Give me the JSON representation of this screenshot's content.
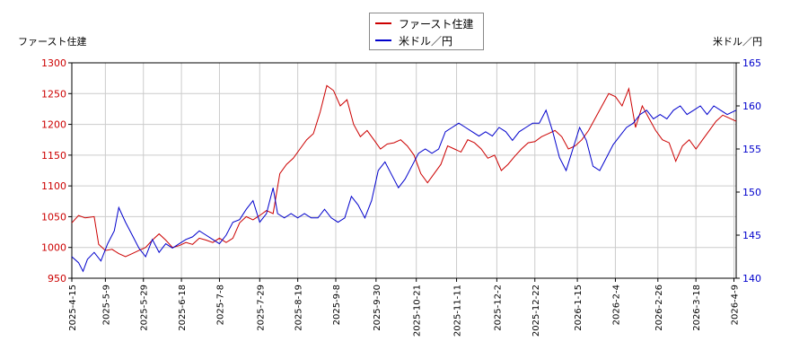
{
  "chart_data": {
    "type": "line",
    "title": "",
    "left_axis_label": "ファースト住建",
    "right_axis_label": "米ドル／円",
    "left_ylim": [
      950,
      1300
    ],
    "left_yticks": [
      "950",
      "1000",
      "1050",
      "1100",
      "1150",
      "1200",
      "1250",
      "1300"
    ],
    "right_ylim": [
      140,
      165
    ],
    "right_yticks": [
      "140",
      "145",
      "150",
      "155",
      "160",
      "165"
    ],
    "x_tick_labels": [
      "2025-4-15",
      "2025-5-9",
      "2025-5-29",
      "2025-6-18",
      "2025-7-8",
      "2025-7-29",
      "2025-8-19",
      "2025-9-8",
      "2025-9-30",
      "2025-10-21",
      "2025-11-11",
      "2025-12-2",
      "2025-12-22",
      "2026-1-15",
      "2026-2-4",
      "2026-2-26",
      "2026-3-18",
      "2026-4-9"
    ],
    "grid": true,
    "legend_position": "top-center",
    "series": [
      {
        "name": "ファースト住建",
        "axis": "left",
        "color": "#cc0000",
        "points": [
          [
            0,
            1040
          ],
          [
            0.3,
            1052
          ],
          [
            0.6,
            1048
          ],
          [
            1,
            1050
          ],
          [
            1.2,
            1005
          ],
          [
            1.5,
            995
          ],
          [
            1.8,
            997
          ],
          [
            2.1,
            990
          ],
          [
            2.4,
            985
          ],
          [
            2.7,
            990
          ],
          [
            3.0,
            995
          ],
          [
            3.3,
            1000
          ],
          [
            3.6,
            1012
          ],
          [
            3.9,
            1022
          ],
          [
            4.2,
            1012
          ],
          [
            4.5,
            1000
          ],
          [
            4.8,
            1003
          ],
          [
            5.1,
            1008
          ],
          [
            5.4,
            1005
          ],
          [
            5.7,
            1015
          ],
          [
            6.0,
            1012
          ],
          [
            6.3,
            1008
          ],
          [
            6.6,
            1015
          ],
          [
            6.9,
            1008
          ],
          [
            7.2,
            1015
          ],
          [
            7.5,
            1040
          ],
          [
            7.8,
            1050
          ],
          [
            8.1,
            1045
          ],
          [
            8.4,
            1052
          ],
          [
            8.7,
            1060
          ],
          [
            9.0,
            1055
          ],
          [
            9.3,
            1120
          ],
          [
            9.6,
            1135
          ],
          [
            9.9,
            1145
          ],
          [
            10.2,
            1160
          ],
          [
            10.5,
            1175
          ],
          [
            10.8,
            1185
          ],
          [
            11.1,
            1220
          ],
          [
            11.4,
            1263
          ],
          [
            11.7,
            1255
          ],
          [
            12.0,
            1230
          ],
          [
            12.3,
            1240
          ],
          [
            12.6,
            1200
          ],
          [
            12.9,
            1180
          ],
          [
            13.2,
            1190
          ],
          [
            13.5,
            1175
          ],
          [
            13.8,
            1160
          ],
          [
            14.1,
            1168
          ],
          [
            14.4,
            1170
          ],
          [
            14.7,
            1175
          ],
          [
            15.0,
            1165
          ],
          [
            15.3,
            1150
          ],
          [
            15.6,
            1120
          ],
          [
            15.9,
            1105
          ],
          [
            16.2,
            1120
          ],
          [
            16.5,
            1135
          ],
          [
            16.8,
            1165
          ],
          [
            17.1,
            1160
          ],
          [
            17.4,
            1155
          ],
          [
            17.7,
            1175
          ],
          [
            18.0,
            1170
          ],
          [
            18.3,
            1160
          ],
          [
            18.6,
            1145
          ],
          [
            18.9,
            1150
          ],
          [
            19.2,
            1125
          ],
          [
            19.5,
            1135
          ],
          [
            19.8,
            1148
          ],
          [
            20.1,
            1160
          ],
          [
            20.4,
            1170
          ],
          [
            20.7,
            1172
          ],
          [
            21.0,
            1180
          ],
          [
            21.3,
            1185
          ],
          [
            21.6,
            1190
          ],
          [
            21.9,
            1180
          ],
          [
            22.2,
            1160
          ],
          [
            22.5,
            1165
          ],
          [
            22.8,
            1175
          ],
          [
            23.1,
            1190
          ],
          [
            23.4,
            1210
          ],
          [
            23.7,
            1230
          ],
          [
            24.0,
            1250
          ],
          [
            24.3,
            1245
          ],
          [
            24.6,
            1230
          ],
          [
            24.9,
            1258
          ],
          [
            25.2,
            1195
          ],
          [
            25.5,
            1230
          ],
          [
            25.8,
            1210
          ],
          [
            26.1,
            1190
          ],
          [
            26.4,
            1175
          ],
          [
            26.7,
            1170
          ],
          [
            27.0,
            1140
          ],
          [
            27.3,
            1165
          ],
          [
            27.6,
            1175
          ],
          [
            27.9,
            1160
          ],
          [
            28.2,
            1175
          ],
          [
            28.5,
            1190
          ],
          [
            28.8,
            1205
          ],
          [
            29.1,
            1215
          ],
          [
            29.4,
            1210
          ],
          [
            29.7,
            1205
          ]
        ]
      },
      {
        "name": "米ドル／円",
        "axis": "right",
        "color": "#0000cc",
        "points": [
          [
            0,
            142.5
          ],
          [
            0.3,
            141.8
          ],
          [
            0.5,
            140.8
          ],
          [
            0.7,
            142.2
          ],
          [
            1.0,
            143.0
          ],
          [
            1.3,
            142.0
          ],
          [
            1.6,
            144.0
          ],
          [
            1.9,
            145.5
          ],
          [
            2.1,
            148.2
          ],
          [
            2.4,
            146.5
          ],
          [
            2.7,
            145.0
          ],
          [
            3.0,
            143.5
          ],
          [
            3.3,
            142.5
          ],
          [
            3.6,
            144.5
          ],
          [
            3.9,
            143.0
          ],
          [
            4.2,
            144.0
          ],
          [
            4.5,
            143.5
          ],
          [
            4.8,
            144.0
          ],
          [
            5.1,
            144.5
          ],
          [
            5.4,
            144.8
          ],
          [
            5.7,
            145.5
          ],
          [
            6.0,
            145.0
          ],
          [
            6.3,
            144.5
          ],
          [
            6.6,
            144.0
          ],
          [
            6.9,
            145.0
          ],
          [
            7.2,
            146.5
          ],
          [
            7.5,
            146.8
          ],
          [
            7.8,
            148.0
          ],
          [
            8.1,
            149.0
          ],
          [
            8.4,
            146.5
          ],
          [
            8.7,
            147.5
          ],
          [
            9.0,
            150.5
          ],
          [
            9.2,
            147.5
          ],
          [
            9.5,
            147.0
          ],
          [
            9.8,
            147.5
          ],
          [
            10.1,
            147.0
          ],
          [
            10.4,
            147.5
          ],
          [
            10.7,
            147.0
          ],
          [
            11.0,
            147.0
          ],
          [
            11.3,
            148.0
          ],
          [
            11.6,
            147.0
          ],
          [
            11.9,
            146.5
          ],
          [
            12.2,
            147.0
          ],
          [
            12.5,
            149.5
          ],
          [
            12.8,
            148.5
          ],
          [
            13.1,
            147.0
          ],
          [
            13.4,
            149.0
          ],
          [
            13.7,
            152.5
          ],
          [
            14.0,
            153.5
          ],
          [
            14.3,
            152.0
          ],
          [
            14.6,
            150.5
          ],
          [
            14.9,
            151.5
          ],
          [
            15.2,
            153.0
          ],
          [
            15.5,
            154.5
          ],
          [
            15.8,
            155.0
          ],
          [
            16.1,
            154.5
          ],
          [
            16.4,
            155.0
          ],
          [
            16.7,
            157.0
          ],
          [
            17.0,
            157.5
          ],
          [
            17.3,
            158.0
          ],
          [
            17.6,
            157.5
          ],
          [
            17.9,
            157.0
          ],
          [
            18.2,
            156.5
          ],
          [
            18.5,
            157.0
          ],
          [
            18.8,
            156.5
          ],
          [
            19.1,
            157.5
          ],
          [
            19.4,
            157.0
          ],
          [
            19.7,
            156.0
          ],
          [
            20.0,
            157.0
          ],
          [
            20.3,
            157.5
          ],
          [
            20.6,
            158.0
          ],
          [
            20.9,
            158.0
          ],
          [
            21.2,
            159.5
          ],
          [
            21.5,
            157.0
          ],
          [
            21.8,
            154.0
          ],
          [
            22.1,
            152.5
          ],
          [
            22.4,
            155.0
          ],
          [
            22.7,
            157.5
          ],
          [
            23.0,
            156.0
          ],
          [
            23.3,
            153.0
          ],
          [
            23.6,
            152.5
          ],
          [
            23.9,
            154.0
          ],
          [
            24.2,
            155.5
          ],
          [
            24.5,
            156.5
          ],
          [
            24.8,
            157.5
          ],
          [
            25.1,
            158.0
          ],
          [
            25.4,
            159.0
          ],
          [
            25.7,
            159.5
          ],
          [
            26.0,
            158.5
          ],
          [
            26.3,
            159.0
          ],
          [
            26.6,
            158.5
          ],
          [
            26.9,
            159.5
          ],
          [
            27.2,
            160.0
          ],
          [
            27.5,
            159.0
          ],
          [
            27.8,
            159.5
          ],
          [
            28.1,
            160.0
          ],
          [
            28.4,
            159.0
          ],
          [
            28.7,
            160.0
          ],
          [
            29.0,
            159.5
          ],
          [
            29.3,
            159.0
          ],
          [
            29.7,
            159.5
          ]
        ]
      }
    ]
  }
}
